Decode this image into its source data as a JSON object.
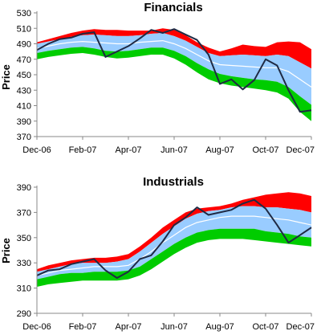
{
  "chart_data": [
    {
      "type": "area",
      "title": "Financials",
      "ylabel": "Price",
      "xlabel": "",
      "ylim": [
        370,
        530
      ],
      "yticks": [
        370,
        390,
        410,
        430,
        450,
        470,
        490,
        510,
        530
      ],
      "xticks": [
        "Dec-06",
        "Feb-07",
        "Apr-07",
        "Jun-07",
        "Aug-07",
        "Oct-07",
        "Dec-07"
      ],
      "xlim": [
        0,
        12
      ],
      "grid": false,
      "legend": "none",
      "colors": {
        "band_outer_upper": "#ff0000",
        "band_inner": "#99ccff",
        "band_outer_lower": "#00cc00",
        "mid_line": "#ffffff",
        "price_line": "#1f2a44"
      },
      "x": [
        0,
        0.5,
        1,
        1.5,
        2,
        2.5,
        3,
        3.5,
        4,
        4.5,
        5,
        5.5,
        6,
        6.5,
        7,
        7.5,
        8,
        8.5,
        9,
        9.5,
        10,
        10.5,
        11,
        11.5,
        12
      ],
      "bands": {
        "upper_outer": [
          492,
          496,
          500,
          504,
          507,
          509,
          508,
          508,
          507,
          507,
          507,
          510,
          508,
          501,
          492,
          485,
          480,
          484,
          489,
          487,
          486,
          492,
          493,
          492,
          483
        ],
        "upper_inner": [
          490,
          493,
          496,
          499,
          501,
          502,
          501,
          500,
          500,
          501,
          503,
          504,
          500,
          494,
          486,
          478,
          474,
          475,
          476,
          475,
          474,
          476,
          474,
          466,
          458
        ],
        "mid": [
          484,
          487,
          490,
          492,
          493,
          492,
          491,
          490,
          490,
          492,
          493,
          494,
          490,
          484,
          476,
          468,
          463,
          462,
          461,
          460,
          459,
          459,
          454,
          444,
          434
        ],
        "lower_inner": [
          478,
          481,
          483,
          485,
          486,
          484,
          481,
          480,
          481,
          483,
          485,
          485,
          481,
          474,
          465,
          457,
          451,
          448,
          446,
          444,
          443,
          441,
          434,
          422,
          411
        ],
        "lower_outer": [
          470,
          473,
          475,
          477,
          478,
          476,
          473,
          471,
          472,
          474,
          476,
          476,
          471,
          463,
          453,
          444,
          439,
          436,
          434,
          432,
          430,
          427,
          419,
          402,
          390
        ]
      },
      "series": [
        {
          "values": [
            482,
            490,
            496,
            498,
            503,
            505,
            473,
            480,
            487,
            497,
            508,
            504,
            509,
            502,
            495,
            476,
            438,
            444,
            431,
            443,
            470,
            462,
            430,
            402,
            404
          ]
        }
      ]
    },
    {
      "type": "area",
      "title": "Industrials",
      "ylabel": "Price",
      "xlabel": "",
      "ylim": [
        290,
        390
      ],
      "yticks": [
        290,
        310,
        330,
        350,
        370,
        390
      ],
      "xticks": [
        "Dec-06",
        "Feb-07",
        "Apr-07",
        "Jun-07",
        "Aug-07",
        "Oct-07",
        "Dec-07"
      ],
      "xlim": [
        0,
        12
      ],
      "grid": false,
      "legend": "none",
      "colors": {
        "band_outer_upper": "#ff0000",
        "band_inner": "#99ccff",
        "band_outer_lower": "#00cc00",
        "mid_line": "#ffffff",
        "price_line": "#1f2a44"
      },
      "x": [
        0,
        0.5,
        1,
        1.5,
        2,
        2.5,
        3,
        3.5,
        4,
        4.5,
        5,
        5.5,
        6,
        6.5,
        7,
        7.5,
        8,
        8.5,
        9,
        9.5,
        10,
        10.5,
        11,
        11.5,
        12
      ],
      "bands": {
        "upper_outer": [
          325,
          328,
          330,
          332,
          333,
          334,
          334,
          335,
          337,
          343,
          350,
          358,
          364,
          370,
          373,
          374,
          375,
          377,
          380,
          382,
          384,
          385,
          386,
          385,
          383
        ],
        "upper_inner": [
          323,
          325,
          327,
          329,
          330,
          330,
          330,
          331,
          333,
          339,
          346,
          353,
          359,
          365,
          369,
          371,
          372,
          374,
          375,
          375,
          374,
          374,
          373,
          372,
          370
        ],
        "mid": [
          320,
          322,
          324,
          325,
          326,
          327,
          327,
          327,
          328,
          333,
          339,
          346,
          352,
          358,
          362,
          364,
          366,
          367,
          367,
          367,
          366,
          365,
          364,
          362,
          360
        ],
        "lower_inner": [
          317,
          319,
          321,
          322,
          322,
          323,
          323,
          323,
          324,
          327,
          333,
          339,
          345,
          350,
          354,
          356,
          357,
          357,
          357,
          357,
          355,
          354,
          353,
          351,
          350
        ],
        "lower_outer": [
          311,
          313,
          314,
          315,
          316,
          316,
          316,
          316,
          317,
          320,
          325,
          331,
          337,
          342,
          346,
          348,
          349,
          349,
          349,
          348,
          347,
          346,
          345,
          344,
          343
        ]
      },
      "series": [
        {
          "values": [
            320,
            324,
            325,
            329,
            331,
            333,
            324,
            318,
            323,
            333,
            336,
            347,
            360,
            366,
            374,
            368,
            370,
            372,
            377,
            380,
            373,
            360,
            346,
            352,
            358
          ]
        }
      ]
    }
  ]
}
